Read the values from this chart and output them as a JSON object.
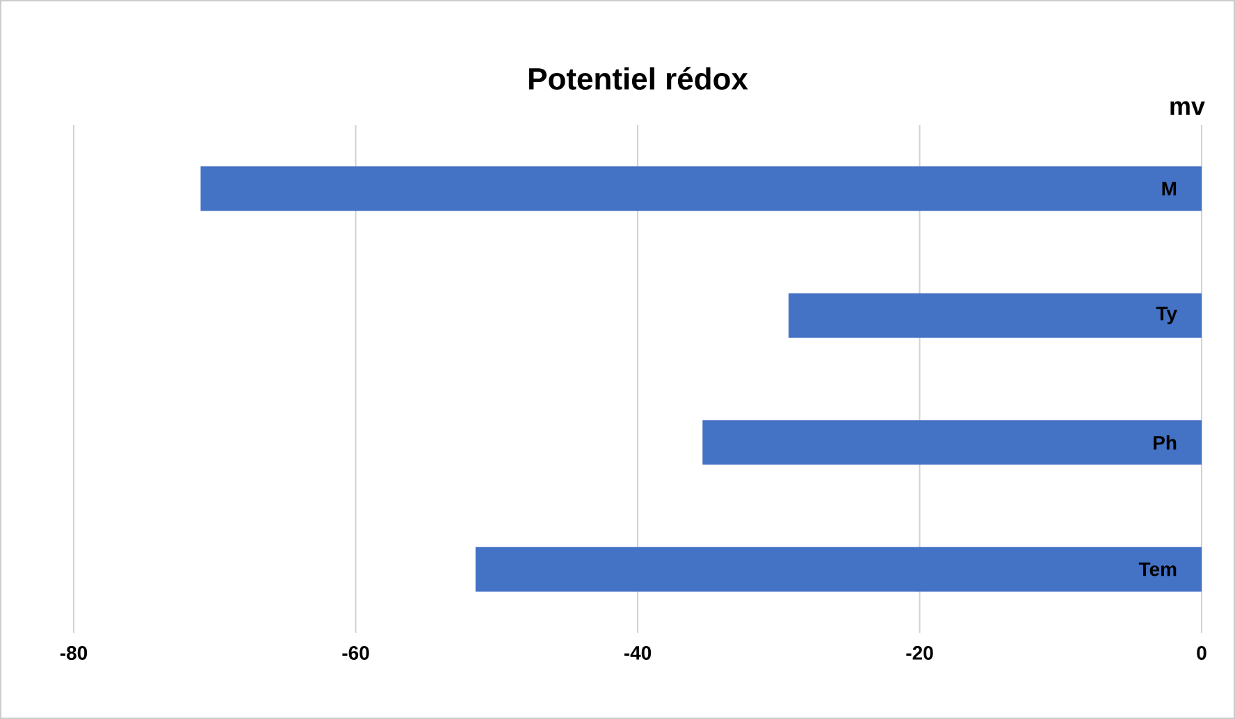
{
  "chart_data": {
    "type": "bar",
    "orientation": "horizontal",
    "title": "Potentiel rédox",
    "xlabel": "mv",
    "categories": [
      "M",
      "Ty",
      "Ph",
      "Tem"
    ],
    "values": [
      -71,
      -29.3,
      -35.4,
      -51.5
    ],
    "color": "#4472c4",
    "xlim": [
      -80,
      0
    ],
    "xticks": [
      -80,
      -60,
      -40,
      -20,
      0
    ],
    "grid": "x"
  }
}
